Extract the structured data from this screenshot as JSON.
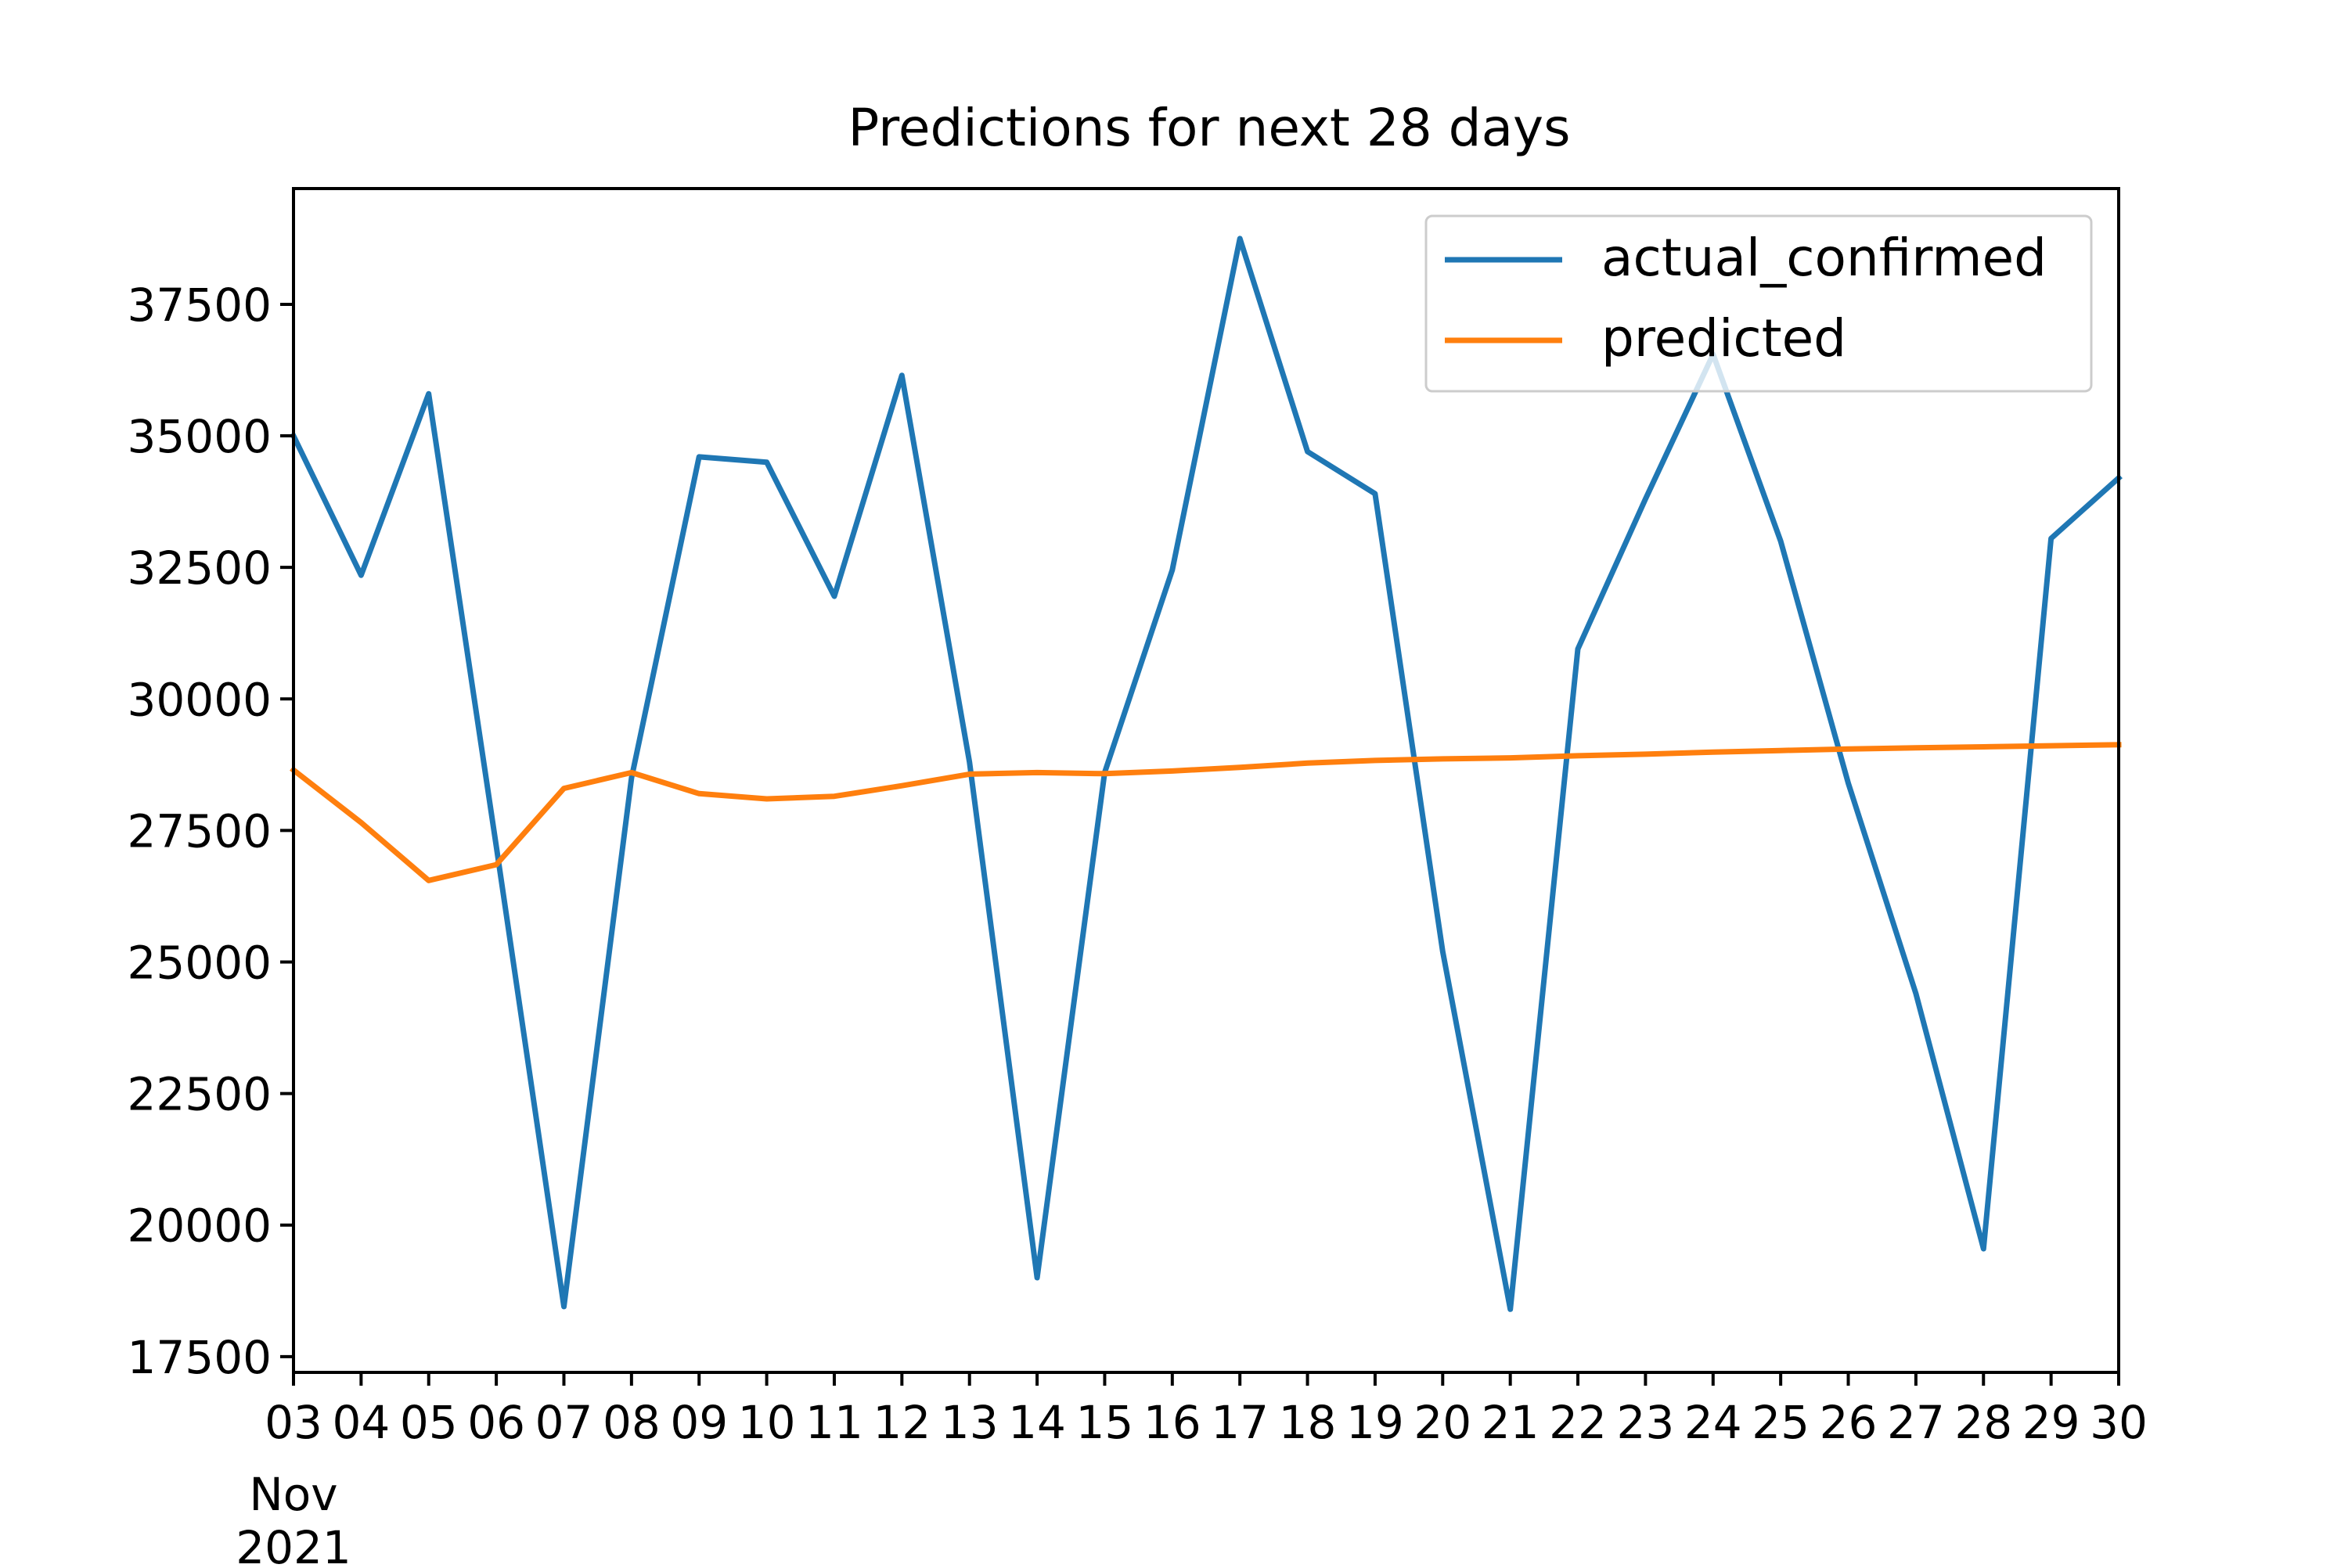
{
  "chart_data": {
    "type": "line",
    "title": "Predictions for next 28 days",
    "xlabel": "",
    "ylabel": "",
    "x": [
      "03",
      "04",
      "05",
      "06",
      "07",
      "08",
      "09",
      "10",
      "11",
      "12",
      "13",
      "14",
      "15",
      "16",
      "17",
      "18",
      "19",
      "20",
      "21",
      "22",
      "23",
      "24",
      "25",
      "26",
      "27",
      "28",
      "29",
      "30"
    ],
    "x_tick_labels": [
      "03",
      "04",
      "05",
      "06",
      "07",
      "08",
      "09",
      "10",
      "11",
      "12",
      "13",
      "14",
      "15",
      "16",
      "17",
      "18",
      "19",
      "20",
      "21",
      "22",
      "23",
      "24",
      "25",
      "26",
      "27",
      "28",
      "29",
      "30"
    ],
    "x_month_label": "Nov",
    "x_year_label": "2021",
    "y_ticks": [
      17500,
      20000,
      22500,
      25000,
      27500,
      30000,
      32500,
      35000,
      37500
    ],
    "ylim": [
      17200,
      39700
    ],
    "grid": false,
    "legend_position": "top-right",
    "series": [
      {
        "name": "actual_confirmed",
        "color": "#1f77b4",
        "values": [
          35000,
          32350,
          35800,
          27200,
          18450,
          28500,
          34600,
          34500,
          31950,
          36150,
          28800,
          19000,
          28600,
          32450,
          38750,
          34700,
          33900,
          25200,
          18400,
          30950,
          33800,
          36550,
          33000,
          28400,
          24400,
          19550,
          33050,
          34200
        ]
      },
      {
        "name": "predicted",
        "color": "#ff7f0e",
        "values": [
          28650,
          27650,
          26550,
          26850,
          28300,
          28600,
          28200,
          28100,
          28150,
          28350,
          28570,
          28600,
          28580,
          28630,
          28700,
          28780,
          28830,
          28860,
          28880,
          28920,
          28950,
          28990,
          29020,
          29050,
          29070,
          29090,
          29110,
          29130
        ]
      }
    ]
  }
}
